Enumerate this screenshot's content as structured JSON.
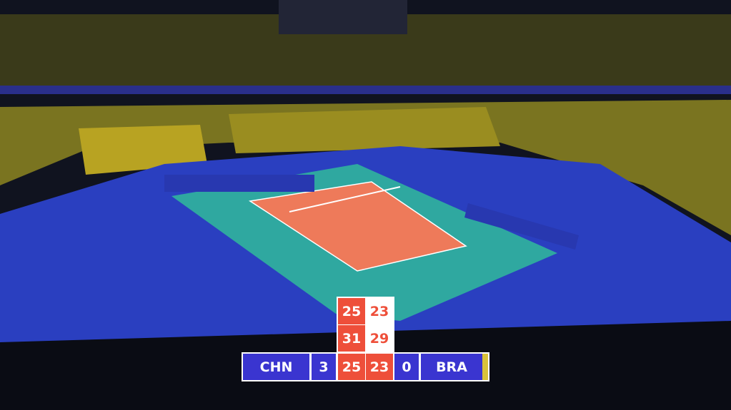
{
  "scoreboard": {
    "home": {
      "team": "CHN",
      "sets_won": "3",
      "color": "#3a35d0"
    },
    "away": {
      "team": "BRA",
      "sets_won": "0",
      "color": "#3a35d0",
      "serve_indicator_color": "#d9c23a"
    },
    "sets": [
      {
        "home": "25",
        "away": "23"
      },
      {
        "home": "31",
        "away": "29"
      },
      {
        "home": "25",
        "away": "23"
      }
    ],
    "accent_color": "#ee4f3a"
  },
  "scene": {
    "court_color": "#ee7a5a",
    "free_zone_color": "#2fa8a0",
    "floor_color": "#2a3fc0",
    "crowd_color": "#c8b022"
  }
}
